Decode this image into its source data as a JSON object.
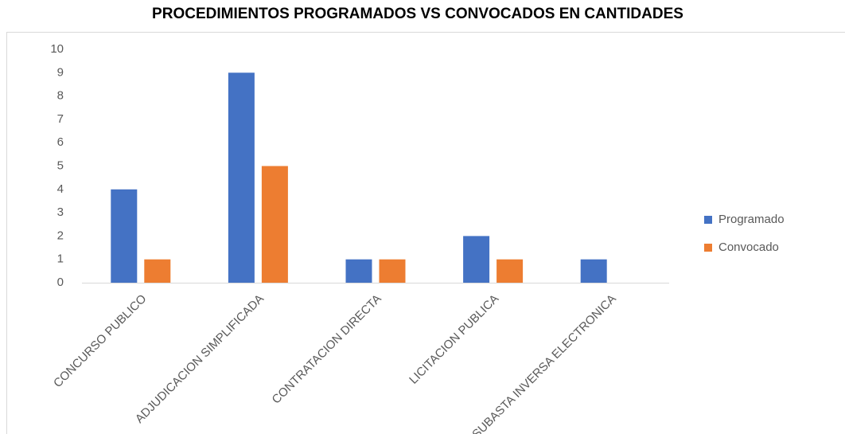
{
  "chart_data": {
    "type": "bar",
    "title": "PROCEDIMIENTOS PROGRAMADOS VS CONVOCADOS EN CANTIDADES",
    "categories": [
      "CONCURSO PUBLICO",
      "ADJUDICACION SIMPLIFICADA",
      "CONTRATACION DIRECTA",
      "LICITACION PUBLICA",
      "SUBASTA INVERSA ELECTRONICA"
    ],
    "series": [
      {
        "name": "Programado",
        "color": "#4472c4",
        "values": [
          4,
          9,
          1,
          2,
          1
        ]
      },
      {
        "name": "Convocado",
        "color": "#ed7d31",
        "values": [
          1,
          5,
          1,
          1,
          0
        ]
      }
    ],
    "ylim": [
      0,
      10
    ],
    "yticks": [
      0,
      1,
      2,
      3,
      4,
      5,
      6,
      7,
      8,
      9,
      10
    ],
    "grid": false,
    "legend": "right"
  }
}
